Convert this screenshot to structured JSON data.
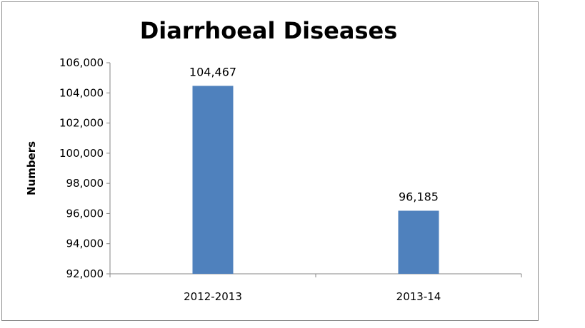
{
  "chart_data": {
    "type": "bar",
    "title": "Diarrhoeal Diseases",
    "xlabel": "",
    "ylabel": "Numbers",
    "categories": [
      "2012-2013",
      "2013-14"
    ],
    "values": [
      104467,
      96185
    ],
    "data_labels": [
      "104,467",
      "96,185"
    ],
    "ylim": [
      92000,
      106000
    ],
    "yticks": [
      92000,
      94000,
      96000,
      98000,
      100000,
      102000,
      104000,
      106000
    ],
    "ytick_labels": [
      "92,000",
      "94,000",
      "96,000",
      "98,000",
      "100,000",
      "102,000",
      "104,000",
      "106,000"
    ],
    "grid": false,
    "legend": "none",
    "bar_color": "#4f81bd"
  }
}
